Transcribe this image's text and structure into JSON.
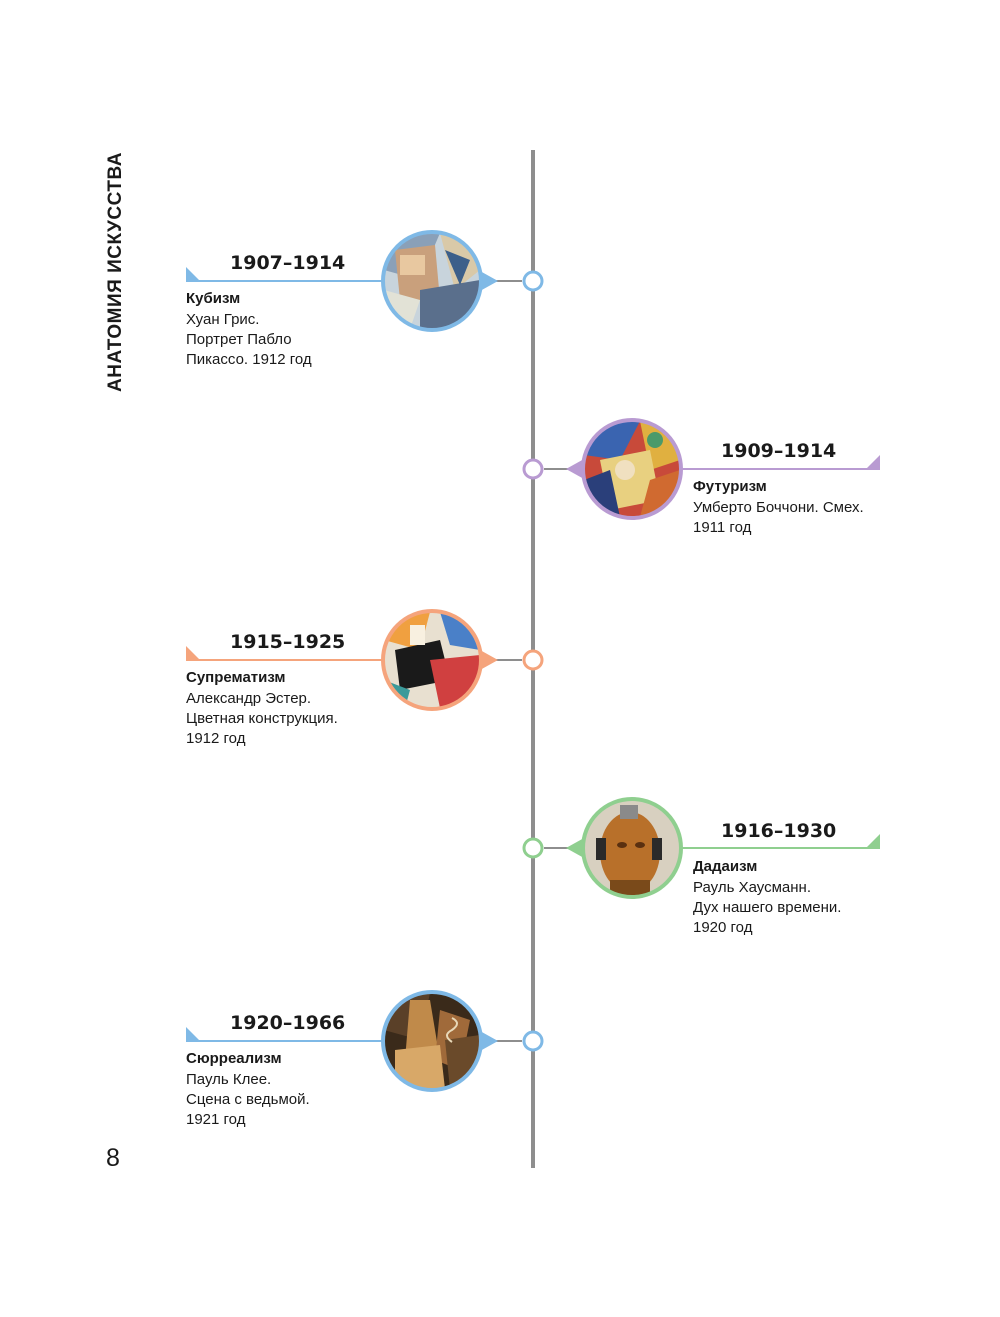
{
  "side_title": "АНАТОМИЯ ИСКУССТВА",
  "page_number": "8",
  "colors": {
    "axis": "#8e8e8e",
    "blue": "#7fb9e6",
    "purple": "#b99bd2",
    "orange": "#f5a47c",
    "green": "#8fcf8f"
  },
  "entries": [
    {
      "years": "1907–1914",
      "movement": "Кубизм",
      "description": "Хуан Грис.\nПортрет Пабло\nПикассо. 1912 год",
      "side": "left",
      "color": "#7fb9e6"
    },
    {
      "years": "1909–1914",
      "movement": "Футуризм",
      "description": "Умберто Боччони. Смех.\n1911 год",
      "side": "right",
      "color": "#b99bd2"
    },
    {
      "years": "1915–1925",
      "movement": "Супрематизм",
      "description": "Александр Эстер.\nЦветная конструкция.\n1912 год",
      "side": "left",
      "color": "#f5a47c"
    },
    {
      "years": "1916–1930",
      "movement": "Дадаизм",
      "description": "Рауль Хаусманн.\nДух нашего времени.\n1920 год",
      "side": "right",
      "color": "#8fcf8f"
    },
    {
      "years": "1920–1966",
      "movement": "Сюрреализм",
      "description": "Пауль Клее.\nСцена с ведьмой.\n1921 год",
      "side": "left",
      "color": "#7fb9e6"
    }
  ]
}
